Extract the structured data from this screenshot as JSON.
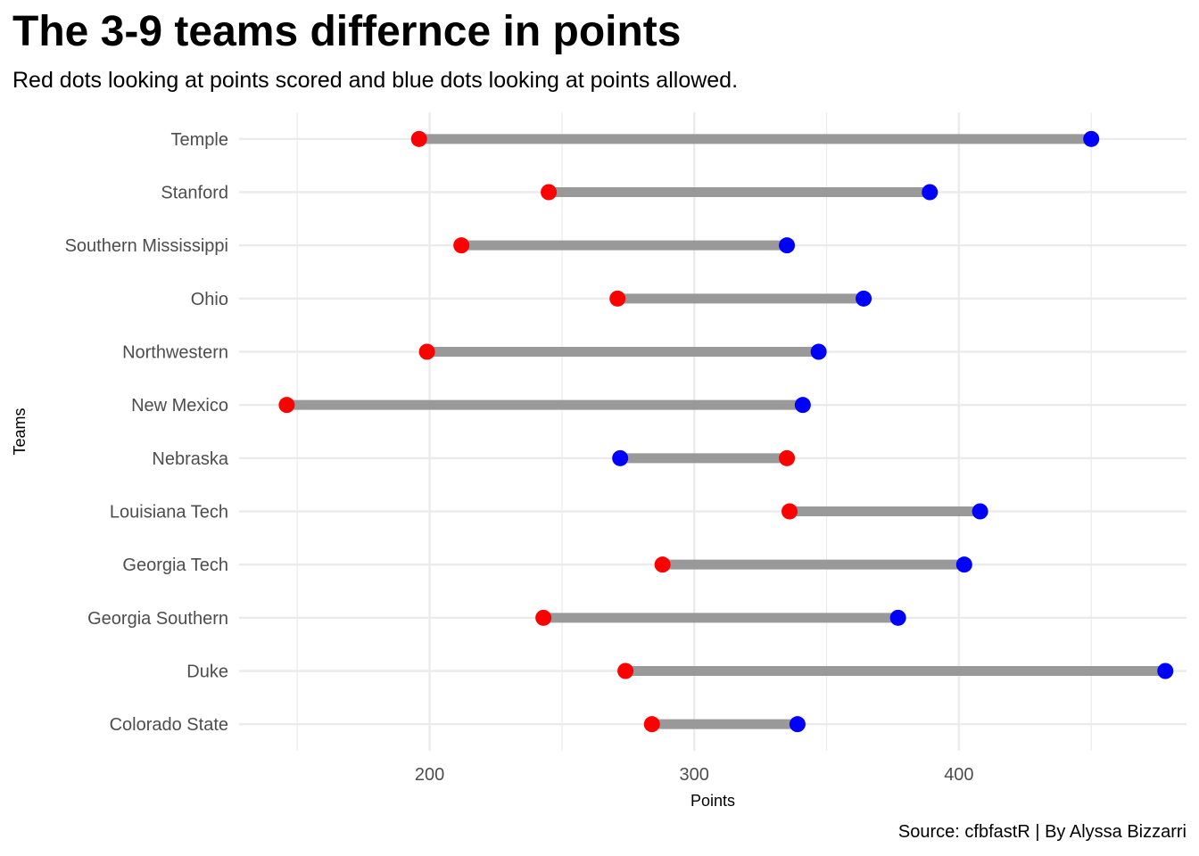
{
  "title": "The 3-9 teams differnce in points",
  "subtitle": "Red dots looking at points scored and blue dots looking at points allowed.",
  "caption": "Source: cfbfastR | By Alyssa Bizzarri",
  "colors": {
    "scored": "#ff0000",
    "allowed": "#0000ff",
    "segment": "#999999",
    "grid": "#ebebeb"
  },
  "chart_data": {
    "type": "dumbbell",
    "xlabel": "Points",
    "ylabel": "Teams",
    "xlim": [
      128,
      486
    ],
    "x_ticks": [
      200,
      300,
      400
    ],
    "grid": true,
    "legend": "none",
    "categories": [
      "Temple",
      "Stanford",
      "Southern Mississippi",
      "Ohio",
      "Northwestern",
      "New Mexico",
      "Nebraska",
      "Louisiana Tech",
      "Georgia Tech",
      "Georgia Southern",
      "Duke",
      "Colorado State"
    ],
    "series": [
      {
        "values": [
          196,
          245,
          212,
          271,
          199,
          146,
          335,
          336,
          288,
          243,
          274,
          284
        ]
      },
      {
        "values": [
          450,
          389,
          335,
          364,
          347,
          341,
          272,
          408,
          402,
          377,
          478,
          339
        ]
      }
    ]
  }
}
